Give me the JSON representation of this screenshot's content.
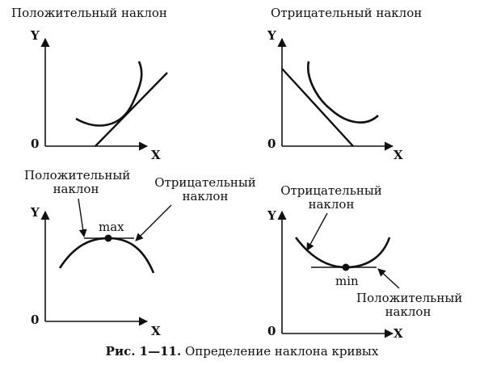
{
  "figure": {
    "caption_number": "Рис. 1—11.",
    "caption_text": "Определение наклона кривых"
  },
  "panels": {
    "top_left": {
      "title": "Положительный наклон",
      "y_axis": "Y",
      "x_axis": "X",
      "origin": "0"
    },
    "top_right": {
      "title": "Отрицательный наклон",
      "y_axis": "Y",
      "x_axis": "X",
      "origin": "0"
    },
    "bottom_left": {
      "positive_label_line1": "Положительный",
      "positive_label_line2": "наклон",
      "negative_label_line1": "Отрицательный",
      "negative_label_line2": "наклон",
      "point_label": "max",
      "y_axis": "Y",
      "x_axis": "X",
      "origin": "0"
    },
    "bottom_right": {
      "negative_label_line1": "Отрицательный",
      "negative_label_line2": "наклон",
      "positive_label_line1": "Положительный",
      "positive_label_line2": "наклон",
      "point_label": "min",
      "y_axis": "Y",
      "x_axis": "X",
      "origin": "0"
    }
  }
}
